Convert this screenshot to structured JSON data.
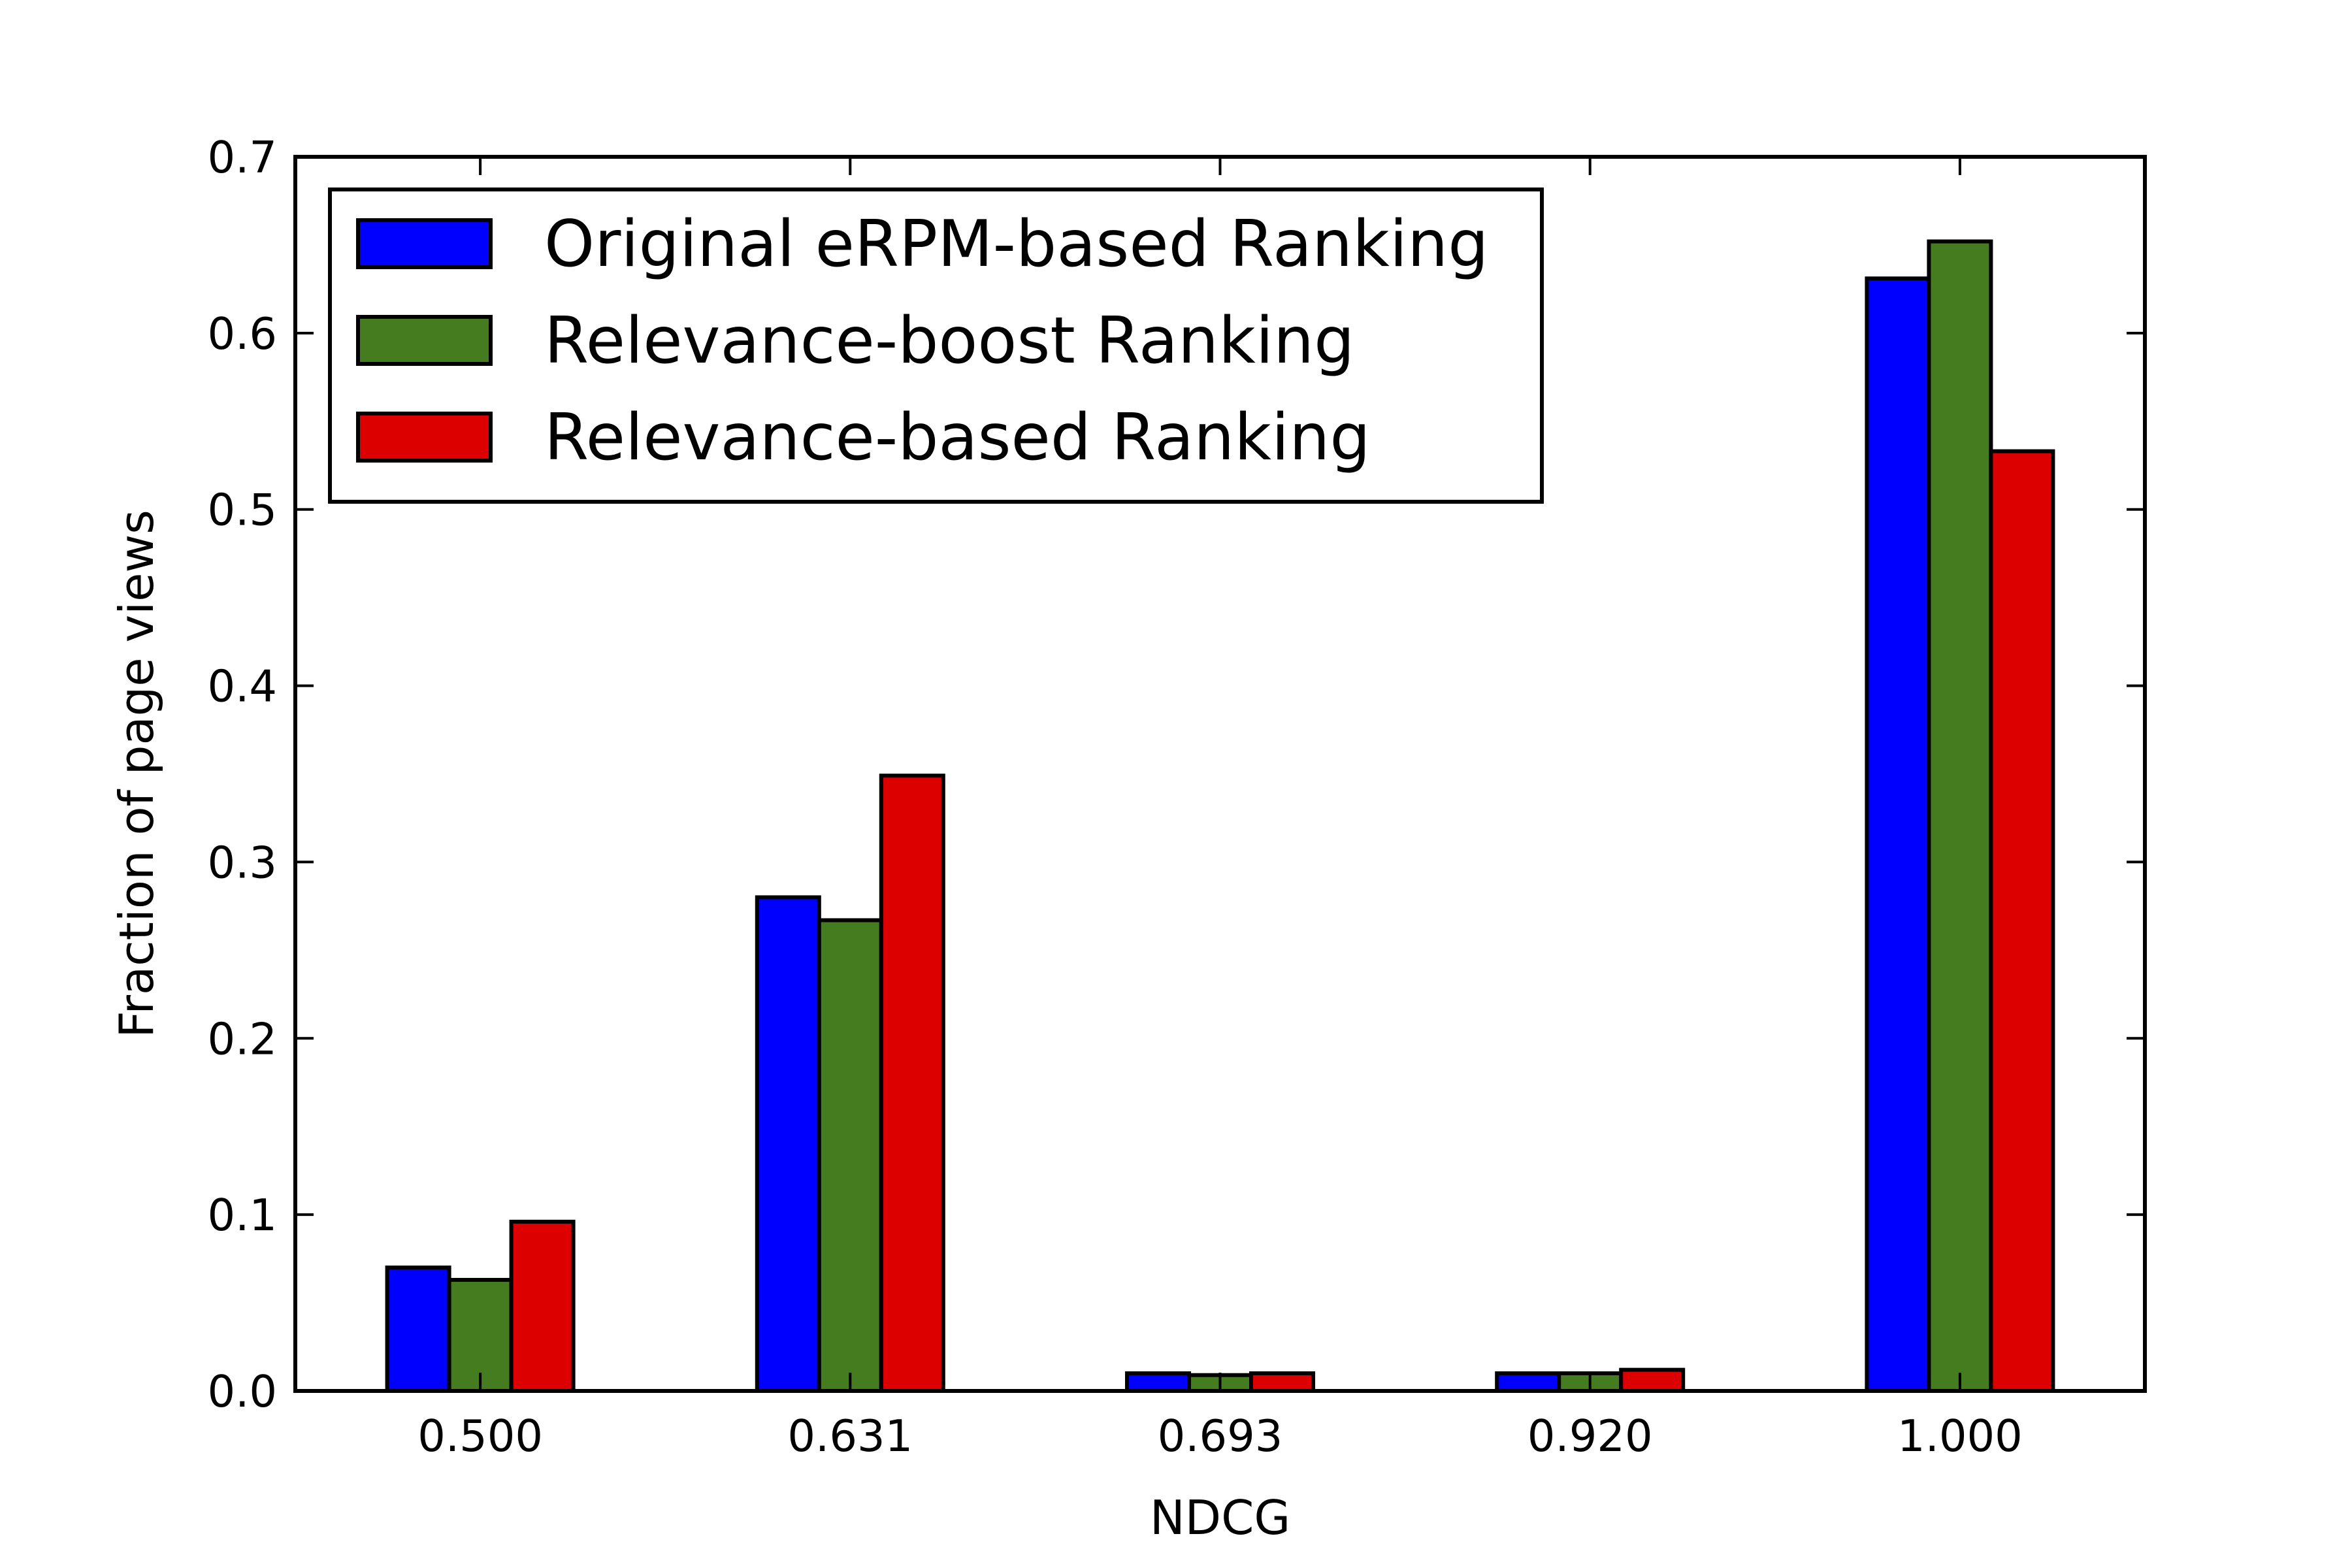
{
  "chart_data": {
    "type": "bar",
    "title": "",
    "xlabel": "NDCG",
    "ylabel": "Fraction of page views",
    "categories": [
      "0.500",
      "0.631",
      "0.693",
      "0.920",
      "1.000"
    ],
    "series": [
      {
        "name": "Original eRPM-based Ranking",
        "color": "#0000ff",
        "values": [
          0.07,
          0.28,
          0.01,
          0.01,
          0.631
        ]
      },
      {
        "name": "Relevance-boost Ranking",
        "color": "#447c1f",
        "values": [
          0.063,
          0.267,
          0.009,
          0.01,
          0.652
        ]
      },
      {
        "name": "Relevance-based Ranking",
        "color": "#dd0000",
        "values": [
          0.096,
          0.349,
          0.01,
          0.012,
          0.533
        ]
      }
    ],
    "ylim": [
      0,
      0.7
    ],
    "yticks": [
      0.0,
      0.1,
      0.2,
      0.3,
      0.4,
      0.5,
      0.6,
      0.7
    ],
    "ytick_labels": [
      "0.0",
      "0.1",
      "0.2",
      "0.3",
      "0.4",
      "0.5",
      "0.6",
      "0.7"
    ],
    "grid": false,
    "legend_position": "top-left"
  }
}
